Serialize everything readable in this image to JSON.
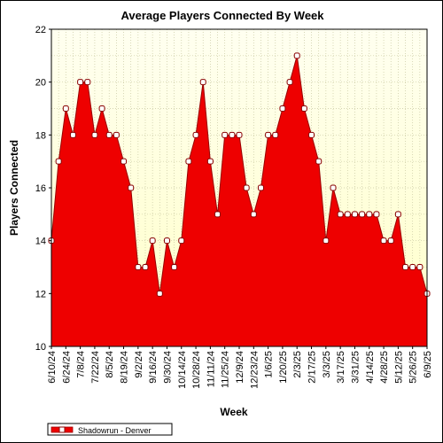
{
  "chart_data": {
    "type": "area",
    "title": "Average Players Connected By Week",
    "xlabel": "Week",
    "ylabel": "Players Connected",
    "ylim": [
      10,
      22
    ],
    "yticks": [
      10,
      12,
      14,
      16,
      18,
      20,
      22
    ],
    "grid": true,
    "legend": "bottom-left",
    "colors": {
      "fill": "#ee0000",
      "line": "#990000",
      "marker_fill": "#ffffff",
      "marker_stroke": "#880000",
      "plot_bg_top": "#fffff0",
      "plot_bg_bottom": "#ffffc8",
      "grid": "#c8c8a0"
    },
    "x_tick_labels": [
      "6/10/24",
      "6/24/24",
      "7/8/24",
      "7/22/24",
      "8/5/24",
      "8/19/24",
      "9/2/24",
      "9/16/24",
      "9/30/24",
      "10/14/24",
      "10/28/24",
      "11/11/24",
      "11/25/24",
      "12/9/24",
      "12/23/24",
      "1/6/25",
      "1/20/25",
      "2/3/25",
      "2/17/25",
      "3/3/25",
      "3/17/25",
      "3/31/25",
      "4/14/25",
      "4/28/25",
      "5/12/25",
      "5/26/25",
      "6/9/25"
    ],
    "series": [
      {
        "name": "Shadowrun - Denver",
        "x": [
          "6/10/24",
          "6/17/24",
          "6/24/24",
          "7/1/24",
          "7/8/24",
          "7/15/24",
          "7/22/24",
          "7/29/24",
          "8/5/24",
          "8/12/24",
          "8/19/24",
          "8/26/24",
          "9/2/24",
          "9/9/24",
          "9/16/24",
          "9/23/24",
          "9/30/24",
          "10/7/24",
          "10/14/24",
          "10/21/24",
          "10/28/24",
          "11/4/24",
          "11/11/24",
          "11/18/24",
          "11/25/24",
          "12/2/24",
          "12/9/24",
          "12/16/24",
          "12/23/24",
          "12/30/24",
          "1/6/25",
          "1/13/25",
          "1/20/25",
          "1/27/25",
          "2/3/25",
          "2/10/25",
          "2/17/25",
          "2/24/25",
          "3/3/25",
          "3/10/25",
          "3/17/25",
          "3/24/25",
          "3/31/25",
          "4/7/25",
          "4/14/25",
          "4/21/25",
          "4/28/25",
          "5/5/25",
          "5/12/25",
          "5/19/25",
          "5/26/25",
          "6/2/25",
          "6/9/25"
        ],
        "values": [
          14,
          17,
          19,
          18,
          20,
          20,
          18,
          19,
          18,
          18,
          17,
          16,
          13,
          13,
          14,
          12,
          14,
          13,
          14,
          17,
          18,
          20,
          17,
          15,
          18,
          18,
          18,
          16,
          15,
          16,
          18,
          18,
          19,
          20,
          21,
          19,
          18,
          17,
          14,
          16,
          15,
          15,
          15,
          15,
          15,
          15,
          14,
          14,
          15,
          13,
          13,
          13,
          12
        ]
      }
    ]
  }
}
